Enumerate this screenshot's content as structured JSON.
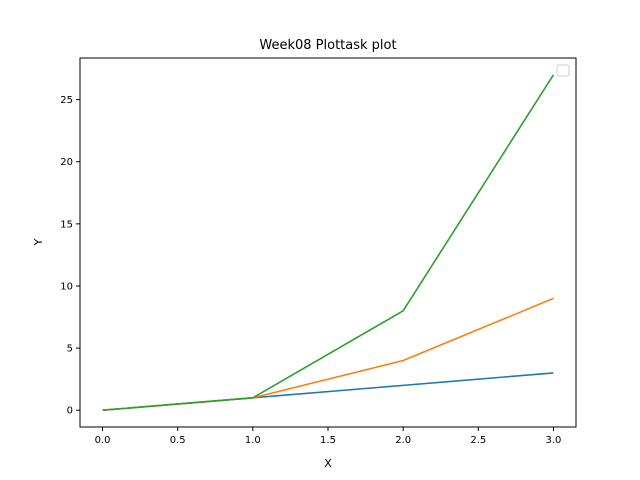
{
  "chart_data": {
    "type": "line",
    "title": "Week08 Plottask plot",
    "xlabel": "X",
    "ylabel": "Y",
    "x": [
      0,
      1,
      2,
      3
    ],
    "series": [
      {
        "values": [
          0,
          1,
          2,
          3
        ],
        "color": "#1f77b4"
      },
      {
        "values": [
          0,
          1,
          4,
          9
        ],
        "color": "#ff7f0e"
      },
      {
        "values": [
          0,
          1,
          8,
          27
        ],
        "color": "#2ca02c"
      }
    ],
    "xlim": [
      -0.15,
      3.15
    ],
    "ylim": [
      -1.35,
      28.35
    ],
    "xticks": [
      0.0,
      0.5,
      1.0,
      1.5,
      2.0,
      2.5,
      3.0
    ],
    "xtick_labels": [
      "0.0",
      "0.5",
      "1.0",
      "1.5",
      "2.0",
      "2.5",
      "3.0"
    ],
    "yticks": [
      0,
      5,
      10,
      15,
      20,
      25
    ],
    "ytick_labels": [
      "0",
      "5",
      "10",
      "15",
      "20",
      "25"
    ],
    "grid": false,
    "legend": "upper-right (empty)"
  }
}
